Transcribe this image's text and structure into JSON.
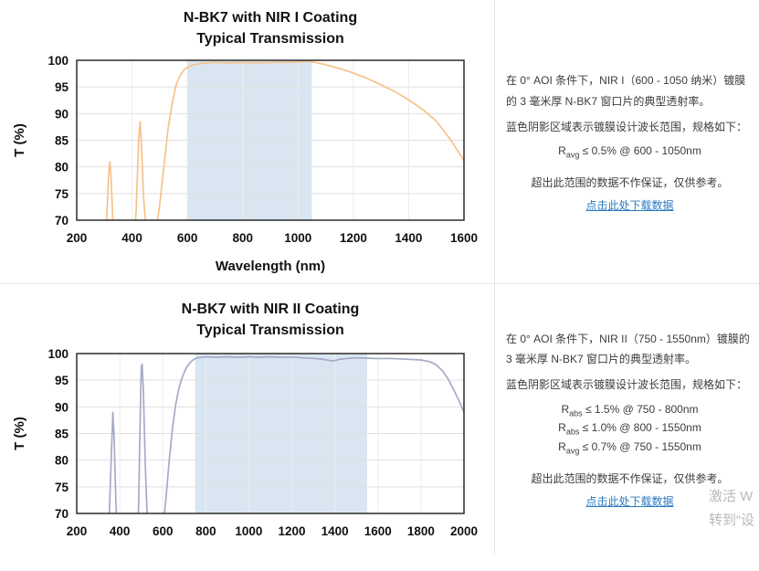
{
  "chart_data": [
    {
      "type": "line",
      "title": "N-BK7 with NIR I Coating",
      "subtitle": "Typical Transmission",
      "xlabel": "Wavelength (nm)",
      "ylabel": "T (%)",
      "xlim": [
        200,
        1600
      ],
      "ylim": [
        70,
        100
      ],
      "xticks": [
        200,
        400,
        600,
        800,
        1000,
        1200,
        1400,
        1600
      ],
      "yticks": [
        70,
        75,
        80,
        85,
        90,
        95,
        100
      ],
      "band": [
        600,
        1050
      ],
      "band_color": "#d9e6f2",
      "grid": true,
      "series": [
        {
          "name": "Transmission",
          "color": "#f6c28b",
          "points": [
            [
              300,
              64
            ],
            [
              308,
              70
            ],
            [
              316,
              79
            ],
            [
              320,
              81
            ],
            [
              324,
              78
            ],
            [
              332,
              68
            ],
            [
              338,
              64
            ],
            [
              405,
              64
            ],
            [
              415,
              72
            ],
            [
              425,
              86
            ],
            [
              429,
              88.5
            ],
            [
              434,
              84
            ],
            [
              442,
              74
            ],
            [
              450,
              69
            ],
            [
              458,
              65
            ],
            [
              465,
              64
            ],
            [
              478,
              65
            ],
            [
              490,
              69
            ],
            [
              500,
              73
            ],
            [
              515,
              80
            ],
            [
              530,
              87
            ],
            [
              545,
              92
            ],
            [
              560,
              95.5
            ],
            [
              575,
              97.3
            ],
            [
              590,
              98.3
            ],
            [
              605,
              98.8
            ],
            [
              625,
              99.2
            ],
            [
              650,
              99.4
            ],
            [
              700,
              99.6
            ],
            [
              750,
              99.5
            ],
            [
              800,
              99.6
            ],
            [
              850,
              99.5
            ],
            [
              900,
              99.6
            ],
            [
              950,
              99.6
            ],
            [
              1000,
              99.7
            ],
            [
              1040,
              99.8
            ],
            [
              1060,
              99.6
            ],
            [
              1090,
              99.3
            ],
            [
              1120,
              98.9
            ],
            [
              1160,
              98.3
            ],
            [
              1200,
              97.6
            ],
            [
              1250,
              96.6
            ],
            [
              1300,
              95.4
            ],
            [
              1350,
              94.1
            ],
            [
              1400,
              92.6
            ],
            [
              1450,
              90.8
            ],
            [
              1500,
              88.6
            ],
            [
              1550,
              85.2
            ],
            [
              1600,
              81.2
            ]
          ]
        }
      ]
    },
    {
      "type": "line",
      "title": "N-BK7 with NIR II Coating",
      "subtitle": "Typical Transmission",
      "xlabel": "",
      "ylabel": "T (%)",
      "xlim": [
        200,
        2000
      ],
      "ylim": [
        70,
        100
      ],
      "xticks": [
        200,
        400,
        600,
        800,
        1000,
        1200,
        1400,
        1600,
        1800,
        2000
      ],
      "yticks": [
        70,
        75,
        80,
        85,
        90,
        95,
        100
      ],
      "band": [
        750,
        1550
      ],
      "band_color": "#d9e6f2",
      "grid": true,
      "series": [
        {
          "name": "Transmission",
          "color": "#a5abc6",
          "points": [
            [
              340,
              64
            ],
            [
              350,
              68
            ],
            [
              360,
              80
            ],
            [
              368,
              89
            ],
            [
              374,
              84
            ],
            [
              382,
              72
            ],
            [
              390,
              65
            ],
            [
              395,
              62
            ],
            [
              480,
              62
            ],
            [
              488,
              72
            ],
            [
              495,
              88
            ],
            [
              500,
              97.5
            ],
            [
              504,
              98
            ],
            [
              510,
              93
            ],
            [
              518,
              80
            ],
            [
              526,
              71
            ],
            [
              535,
              65
            ],
            [
              545,
              62
            ],
            [
              560,
              61
            ],
            [
              585,
              63
            ],
            [
              600,
              67
            ],
            [
              615,
              73
            ],
            [
              630,
              80
            ],
            [
              645,
              86
            ],
            [
              660,
              90.5
            ],
            [
              675,
              93.5
            ],
            [
              690,
              95.5
            ],
            [
              705,
              97
            ],
            [
              720,
              98
            ],
            [
              740,
              98.8
            ],
            [
              760,
              99.2
            ],
            [
              800,
              99.4
            ],
            [
              850,
              99.3
            ],
            [
              900,
              99.4
            ],
            [
              950,
              99.3
            ],
            [
              1000,
              99.4
            ],
            [
              1050,
              99.3
            ],
            [
              1100,
              99.4
            ],
            [
              1150,
              99.3
            ],
            [
              1200,
              99.35
            ],
            [
              1250,
              99.2
            ],
            [
              1300,
              99.1
            ],
            [
              1350,
              98.9
            ],
            [
              1390,
              98.6
            ],
            [
              1420,
              98.9
            ],
            [
              1460,
              99.1
            ],
            [
              1500,
              99.2
            ],
            [
              1550,
              99.15
            ],
            [
              1600,
              99.05
            ],
            [
              1650,
              99.1
            ],
            [
              1700,
              99.0
            ],
            [
              1750,
              98.9
            ],
            [
              1800,
              98.8
            ],
            [
              1840,
              98.5
            ],
            [
              1870,
              97.9
            ],
            [
              1900,
              96.8
            ],
            [
              1925,
              95.3
            ],
            [
              1950,
              93.4
            ],
            [
              1975,
              91.3
            ],
            [
              2000,
              89.0
            ]
          ]
        }
      ]
    }
  ],
  "panels": [
    {
      "desc": "在 0° AOI 条件下，NIR I（600 - 1050 纳米）镀膜的 3 毫米厚 N-BK7 窗口片的典型透射率。",
      "band_note": "蓝色阴影区域表示镀膜设计波长范围，规格如下：",
      "specs": [
        {
          "base": "R",
          "sub": "avg",
          "rest": " ≤ 0.5% @ 600 - 1050nm"
        }
      ],
      "disclaimer": "超出此范围的数据不作保证，仅供参考。",
      "link": "点击此处下载数据"
    },
    {
      "desc": "在 0° AOI 条件下，NIR II（750 - 1550nm）镀膜的 3 毫米厚 N-BK7 窗口片的典型透射率。",
      "band_note": "蓝色阴影区域表示镀膜设计波长范围，规格如下：",
      "specs": [
        {
          "base": "R",
          "sub": "abs",
          "rest": " ≤ 1.5% @ 750 - 800nm"
        },
        {
          "base": "R",
          "sub": "abs",
          "rest": " ≤ 1.0% @ 800 - 1550nm"
        },
        {
          "base": "R",
          "sub": "avg",
          "rest": " ≤ 0.7% @ 750 - 1550nm"
        }
      ],
      "disclaimer": "超出此范围的数据不作保证，仅供参考。",
      "link": "点击此处下载数据"
    }
  ],
  "watermark": {
    "line1": "激活 W",
    "line2": "转到“设"
  }
}
